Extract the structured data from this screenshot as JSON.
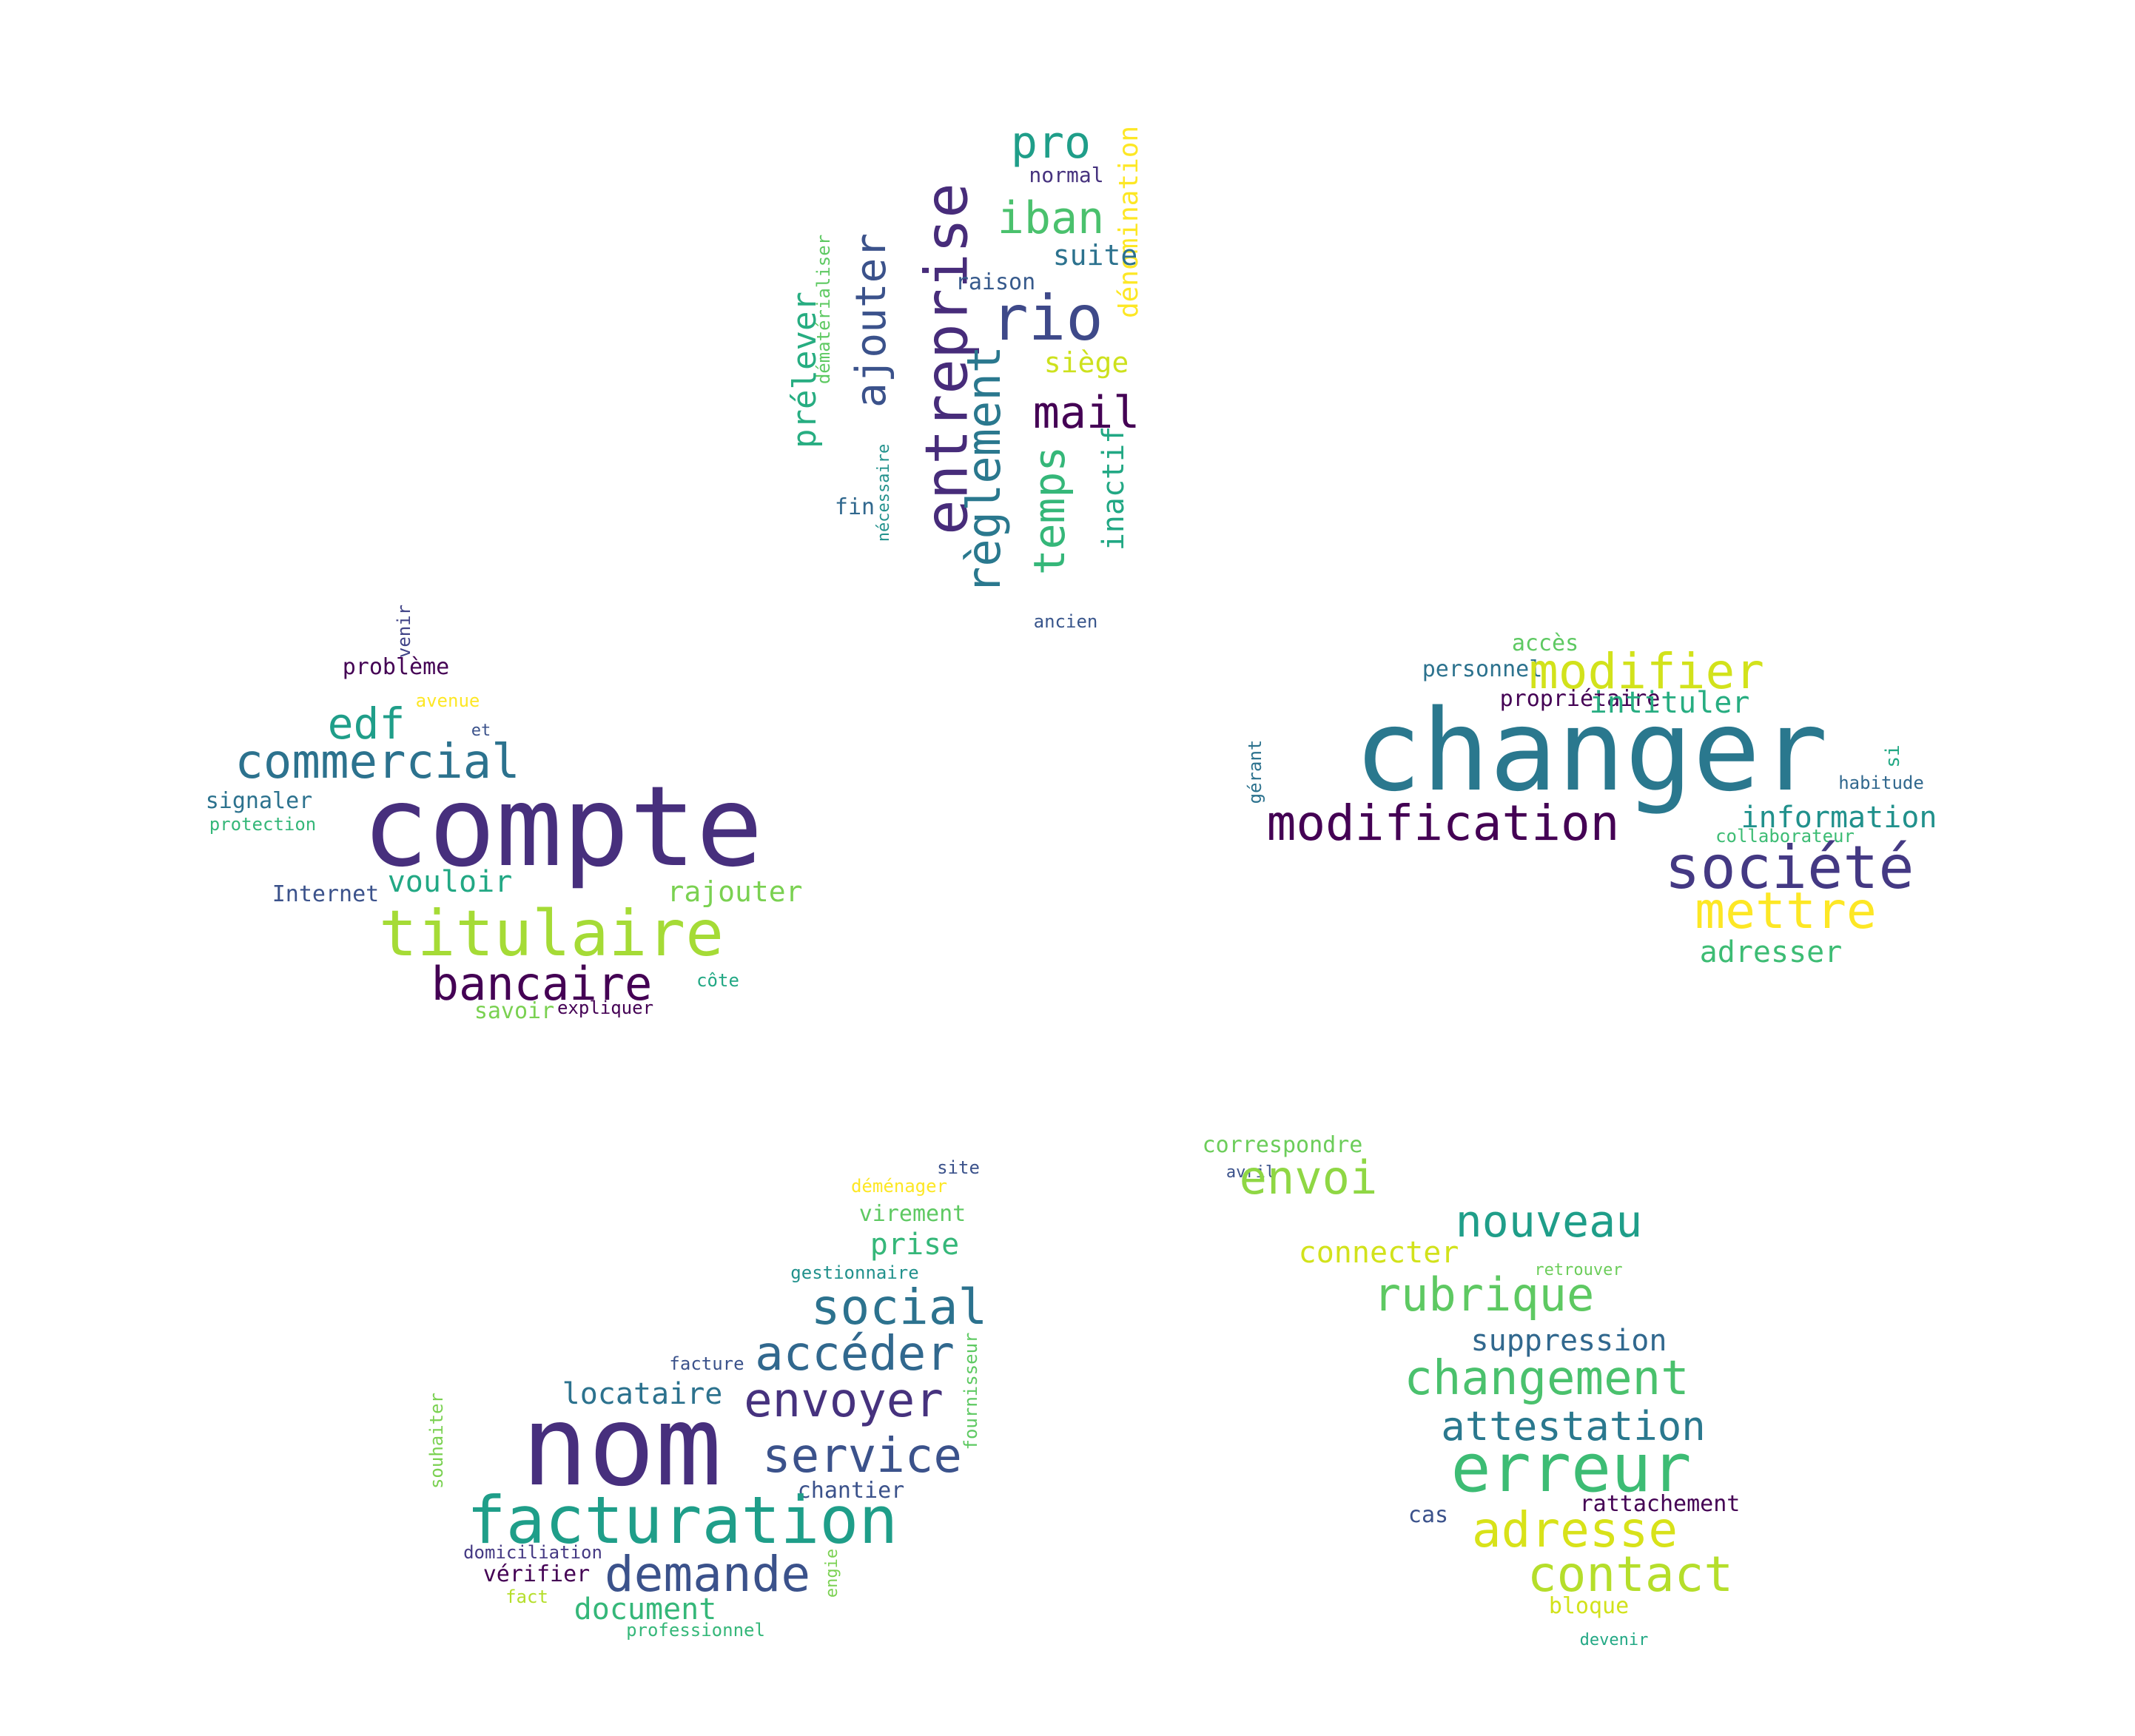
{
  "clouds": [
    {
      "name": "cloud-top",
      "words": [
        {
          "text": "pro",
          "color": "#1f9e89"
        },
        {
          "text": "normal",
          "color": "#46327e"
        },
        {
          "text": "dénomination",
          "color": "#fde725",
          "vertical": true
        },
        {
          "text": "iban",
          "color": "#4ac16d"
        },
        {
          "text": "entreprise",
          "color": "#472c7a",
          "vertical": true
        },
        {
          "text": "suite",
          "color": "#2c728e"
        },
        {
          "text": "ajouter",
          "color": "#3b528b",
          "vertical": true
        },
        {
          "text": "raison",
          "color": "#375a8c"
        },
        {
          "text": "rio",
          "color": "#3e4989"
        },
        {
          "text": "dématérialiser",
          "color": "#5ec962",
          "vertical": true
        },
        {
          "text": "prélever",
          "color": "#27ad81",
          "vertical": true
        },
        {
          "text": "siège",
          "color": "#cde11d"
        },
        {
          "text": "mail",
          "color": "#440154"
        },
        {
          "text": "règlement",
          "color": "#2a788e",
          "vertical": true
        },
        {
          "text": "temps",
          "color": "#35b779",
          "vertical": true
        },
        {
          "text": "inactif",
          "color": "#22a884",
          "vertical": true
        },
        {
          "text": "nécessaire",
          "color": "#21918c",
          "vertical": true
        },
        {
          "text": "fin",
          "color": "#31688e"
        },
        {
          "text": "ancien",
          "color": "#39568c"
        }
      ]
    },
    {
      "name": "cloud-left",
      "words": [
        {
          "text": "venir",
          "color": "#414487",
          "vertical": true
        },
        {
          "text": "problème",
          "color": "#440154"
        },
        {
          "text": "avenue",
          "color": "#fde725"
        },
        {
          "text": "edf",
          "color": "#1f9e89"
        },
        {
          "text": "et",
          "color": "#3b528b"
        },
        {
          "text": "commercial",
          "color": "#2c728e"
        },
        {
          "text": "compte",
          "color": "#472f7d"
        },
        {
          "text": "signaler",
          "color": "#2c728e"
        },
        {
          "text": "protection",
          "color": "#35b779"
        },
        {
          "text": "vouloir",
          "color": "#22a884"
        },
        {
          "text": "rajouter",
          "color": "#7ad151"
        },
        {
          "text": "Internet",
          "color": "#3b528b"
        },
        {
          "text": "titulaire",
          "color": "#a5db36"
        },
        {
          "text": "bancaire",
          "color": "#440154"
        },
        {
          "text": "côte",
          "color": "#22a884"
        },
        {
          "text": "savoir",
          "color": "#7ad151"
        },
        {
          "text": "expliquer",
          "color": "#440154"
        }
      ]
    },
    {
      "name": "cloud-right",
      "words": [
        {
          "text": "accès",
          "color": "#5ec962"
        },
        {
          "text": "personnel",
          "color": "#2c728e"
        },
        {
          "text": "modifier",
          "color": "#d2e21b"
        },
        {
          "text": "propriétaire",
          "color": "#440154"
        },
        {
          "text": "intituler",
          "color": "#27ad81"
        },
        {
          "text": "changer",
          "color": "#2a788e"
        },
        {
          "text": "gérant",
          "color": "#2c728e",
          "vertical": true
        },
        {
          "text": "si",
          "color": "#22a884",
          "vertical": true
        },
        {
          "text": "habitude",
          "color": "#31688e"
        },
        {
          "text": "modification",
          "color": "#440154"
        },
        {
          "text": "information",
          "color": "#21918c"
        },
        {
          "text": "collaborateur",
          "color": "#3dbc74"
        },
        {
          "text": "société",
          "color": "#443983"
        },
        {
          "text": "mettre",
          "color": "#fde725"
        },
        {
          "text": "adresser",
          "color": "#3dbc74"
        }
      ]
    },
    {
      "name": "cloud-bottom-left",
      "words": [
        {
          "text": "site",
          "color": "#3b528b"
        },
        {
          "text": "déménager",
          "color": "#fde725"
        },
        {
          "text": "virement",
          "color": "#5ec962"
        },
        {
          "text": "prise",
          "color": "#35b779"
        },
        {
          "text": "gestionnaire",
          "color": "#21918c"
        },
        {
          "text": "social",
          "color": "#2c728e"
        },
        {
          "text": "accéder",
          "color": "#31688e"
        },
        {
          "text": "facture",
          "color": "#3b528b"
        },
        {
          "text": "fournisseur",
          "color": "#5ec962",
          "vertical": true
        },
        {
          "text": "locataire",
          "color": "#2c728e"
        },
        {
          "text": "envoyer",
          "color": "#46327e"
        },
        {
          "text": "souhaiter",
          "color": "#7ad151",
          "vertical": true
        },
        {
          "text": "nom",
          "color": "#472f7d"
        },
        {
          "text": "service",
          "color": "#3b528b"
        },
        {
          "text": "chantier",
          "color": "#3b528b"
        },
        {
          "text": "facturation",
          "color": "#1f9e89"
        },
        {
          "text": "domiciliation",
          "color": "#443983"
        },
        {
          "text": "engie",
          "color": "#7ad151",
          "vertical": true
        },
        {
          "text": "vérifier",
          "color": "#440154"
        },
        {
          "text": "demande",
          "color": "#3b528b"
        },
        {
          "text": "fact",
          "color": "#b5de2b"
        },
        {
          "text": "document",
          "color": "#35b779"
        },
        {
          "text": "professionnel",
          "color": "#35b779"
        }
      ]
    },
    {
      "name": "cloud-bottom-right",
      "words": [
        {
          "text": "correspondre",
          "color": "#6ccd5a"
        },
        {
          "text": "avril",
          "color": "#3b528b"
        },
        {
          "text": "envoi",
          "color": "#8fd744"
        },
        {
          "text": "nouveau",
          "color": "#1f9e89"
        },
        {
          "text": "connecter",
          "color": "#d2e21b"
        },
        {
          "text": "retrouver",
          "color": "#6ccd5a"
        },
        {
          "text": "rubrique",
          "color": "#5ec962"
        },
        {
          "text": "suppression",
          "color": "#31688e"
        },
        {
          "text": "changement",
          "color": "#4ac16d"
        },
        {
          "text": "attestation",
          "color": "#2a788e"
        },
        {
          "text": "erreur",
          "color": "#3dbc74"
        },
        {
          "text": "rattachement",
          "color": "#440154"
        },
        {
          "text": "cas",
          "color": "#3b528b"
        },
        {
          "text": "adresse",
          "color": "#d8e219"
        },
        {
          "text": "contact",
          "color": "#b5de2b"
        },
        {
          "text": "bloque",
          "color": "#d2e21b"
        },
        {
          "text": "devenir",
          "color": "#22a884"
        }
      ]
    }
  ]
}
